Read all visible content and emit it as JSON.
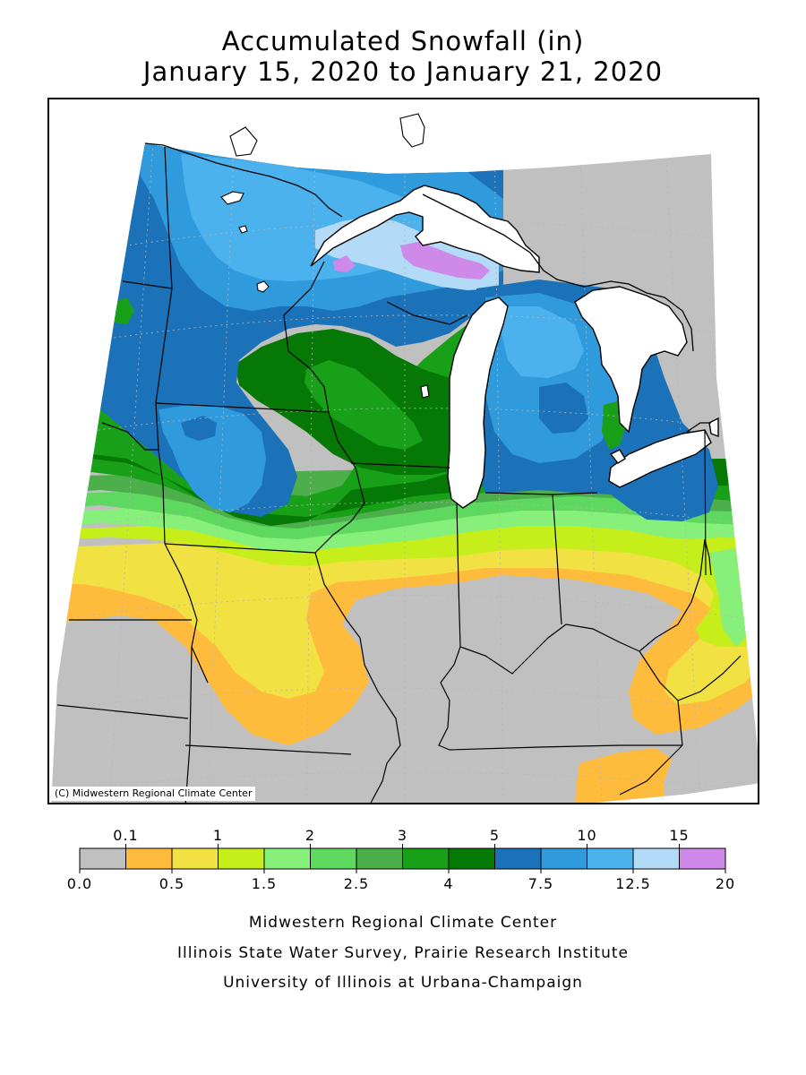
{
  "title_line_1": "Accumulated Snowfall (in)",
  "title_line_2": "January 15, 2020 to January 21, 2020",
  "copyright": "(C) Midwestern Regional Climate Center",
  "legend": {
    "upper_labels": [
      "0.1",
      "1",
      "2",
      "3",
      "5",
      "10",
      "15"
    ],
    "lower_labels": [
      "0.0",
      "0.5",
      "1.5",
      "2.5",
      "4",
      "7.5",
      "12.5",
      "20"
    ],
    "bins": [
      {
        "range": "0.0-0.1",
        "color": "#c0c0c0"
      },
      {
        "range": "0.1-0.5",
        "color": "#ffbb3c"
      },
      {
        "range": "0.5-1",
        "color": "#f2e142"
      },
      {
        "range": "1-1.5",
        "color": "#c5ee1a"
      },
      {
        "range": "1.5-2",
        "color": "#87f07a"
      },
      {
        "range": "2-2.5",
        "color": "#5ed85e"
      },
      {
        "range": "2.5-3",
        "color": "#4caf4c"
      },
      {
        "range": "3-4",
        "color": "#18a118"
      },
      {
        "range": "4-5",
        "color": "#067806"
      },
      {
        "range": "5-7.5",
        "color": "#1c72b8"
      },
      {
        "range": "7.5-10",
        "color": "#2f9bdc"
      },
      {
        "range": "10-12.5",
        "color": "#4cb2ee"
      },
      {
        "range": "12.5-15",
        "color": "#b3dbf7"
      },
      {
        "range": "15-20",
        "color": "#cf8ae9"
      }
    ]
  },
  "credits": [
    "Midwestern Regional Climate Center",
    "Illinois State Water Survey, Prairie Research Institute",
    "University of Illinois at Urbana-Champaign"
  ]
}
